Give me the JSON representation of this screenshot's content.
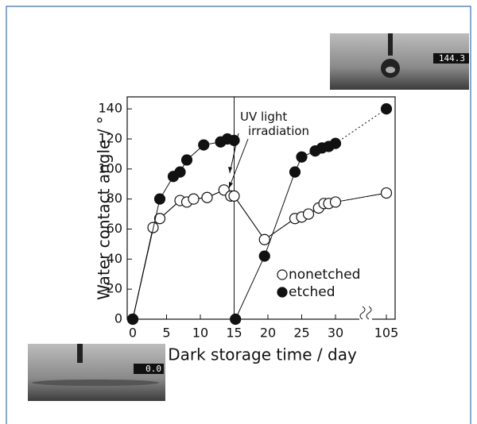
{
  "chart_data": {
    "type": "scatter",
    "x_label": "Dark storage time / day",
    "y_label": "Water contact angle / °",
    "annotation": "UV light irradiation",
    "insets": [
      "144.3",
      "0.0"
    ],
    "xlim": [
      0,
      105
    ],
    "xticks": [
      0,
      5,
      10,
      15,
      20,
      25,
      30,
      105
    ],
    "ylim": [
      0,
      148
    ],
    "yticks": [
      0,
      20,
      40,
      60,
      80,
      100,
      120,
      140
    ],
    "series": [
      {
        "name": "nonetched",
        "color": "#ffffff",
        "x": [
          0,
          3,
          4,
          7,
          8,
          9,
          11,
          13.5,
          14.5,
          15,
          19.5,
          24,
          25,
          26,
          27.5,
          28.3,
          29,
          30,
          105
        ],
        "values": [
          0,
          61,
          67,
          79,
          78,
          80,
          81,
          86,
          82,
          82,
          53,
          67,
          68,
          70,
          74,
          77,
          77,
          78,
          84
        ]
      },
      {
        "name": "etched",
        "color": "#111111",
        "x": [
          0,
          4,
          6,
          7,
          8,
          10.5,
          13,
          14,
          15,
          15.2,
          19.5,
          24,
          25,
          27,
          28,
          29,
          30,
          105
        ],
        "values": [
          0,
          80,
          95,
          98,
          106,
          116,
          118,
          120,
          119,
          0,
          42,
          98,
          108,
          112,
          114,
          115,
          117,
          140
        ]
      }
    ]
  }
}
